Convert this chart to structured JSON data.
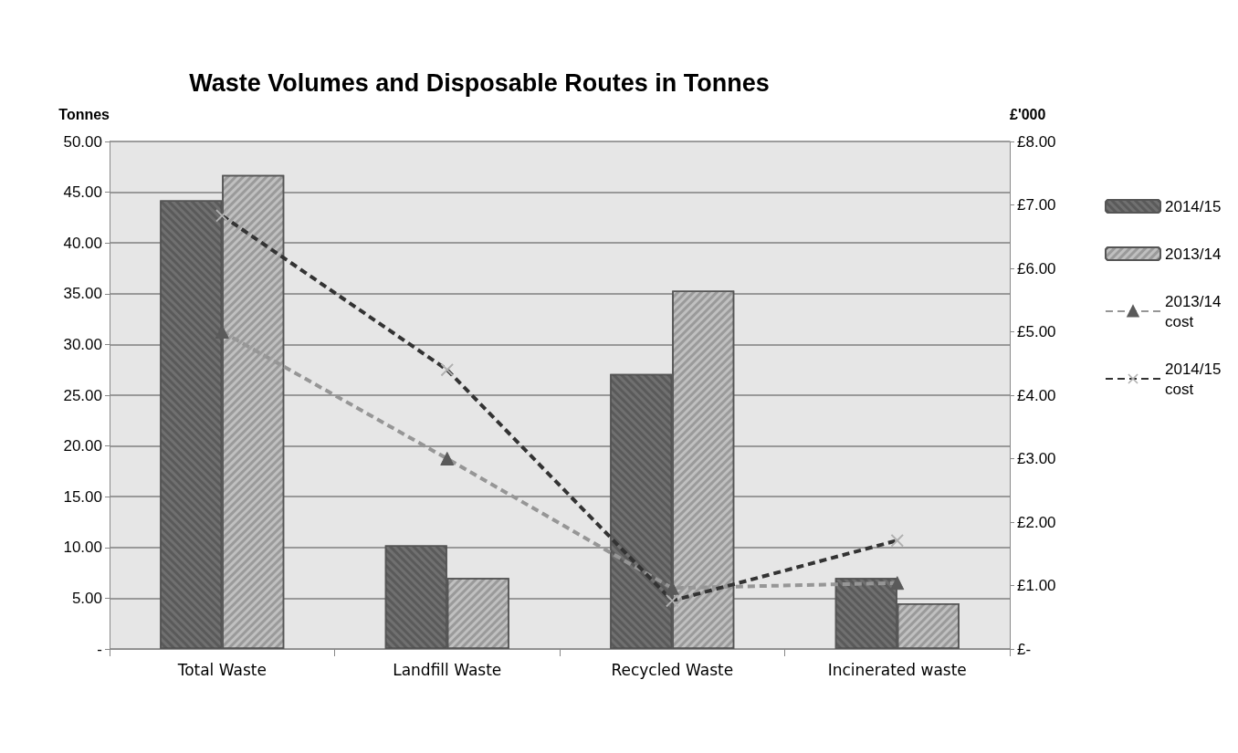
{
  "chart_data": {
    "type": "bar",
    "title": "Waste Volumes and Disposable Routes in Tonnes",
    "ylabel": "Tonnes",
    "y2label": "£'000",
    "categories": [
      "Total Waste",
      "Landfill Waste",
      "Recycled Waste",
      "Incinerated waste"
    ],
    "series": [
      {
        "name": "2014/15",
        "color": "#707070",
        "values": [
          44.2,
          10.2,
          27.1,
          7.0
        ]
      },
      {
        "name": "2013/14",
        "color": "#c0c0c0",
        "values": [
          46.7,
          7.0,
          35.3,
          4.5
        ]
      },
      {
        "name": "2013/14 cost",
        "type": "line",
        "axis": "y2",
        "color": "#969696",
        "marker": "triangle",
        "line_style": "dashed",
        "values": [
          5.0,
          3.0,
          0.96,
          1.04
        ]
      },
      {
        "name": "2014/15 cost",
        "type": "line",
        "axis": "y2",
        "color": "#333333",
        "marker": "cross",
        "line_style": "dashed",
        "values": [
          6.83,
          4.4,
          0.76,
          1.71
        ]
      }
    ],
    "ylim": [
      0,
      50
    ],
    "yticks": [
      {
        "value": 0,
        "label": "-"
      },
      {
        "value": 5,
        "label": "5.00"
      },
      {
        "value": 10,
        "label": "10.00"
      },
      {
        "value": 15,
        "label": "15.00"
      },
      {
        "value": 20,
        "label": "20.00"
      },
      {
        "value": 25,
        "label": "25.00"
      },
      {
        "value": 30,
        "label": "30.00"
      },
      {
        "value": 35,
        "label": "35.00"
      },
      {
        "value": 40,
        "label": "40.00"
      },
      {
        "value": 45,
        "label": "45.00"
      },
      {
        "value": 50,
        "label": "50.00"
      }
    ],
    "y2lim": [
      0,
      8
    ],
    "y2ticks": [
      {
        "value": 0,
        "label": "£-"
      },
      {
        "value": 1,
        "label": "£1.00"
      },
      {
        "value": 2,
        "label": "£2.00"
      },
      {
        "value": 3,
        "label": "£3.00"
      },
      {
        "value": 4,
        "label": "£4.00"
      },
      {
        "value": 5,
        "label": "£5.00"
      },
      {
        "value": 6,
        "label": "£6.00"
      },
      {
        "value": 7,
        "label": "£7.00"
      },
      {
        "value": 8,
        "label": "£8.00"
      }
    ],
    "grid": "y",
    "legend": "right"
  }
}
